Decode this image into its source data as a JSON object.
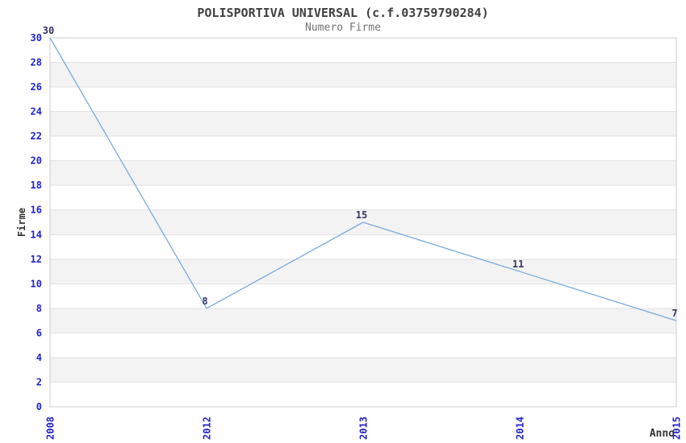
{
  "chart_data": {
    "type": "line",
    "title": "POLISPORTIVA UNIVERSAL (c.f.03759790284)",
    "subtitle": "Numero Firme",
    "xlabel": "Anno",
    "ylabel": "Firme",
    "categories": [
      "2008",
      "2012",
      "2013",
      "2014",
      "2015"
    ],
    "values": [
      30,
      8,
      15,
      11,
      7
    ],
    "series_name": "Numero Firme",
    "ylim": [
      0,
      30
    ],
    "ytick_step": 2,
    "yticks": [
      0,
      2,
      4,
      6,
      8,
      10,
      12,
      14,
      16,
      18,
      20,
      22,
      24,
      26,
      28,
      30
    ],
    "grid": "horizontal alternating bands, no vertical gridlines",
    "legend": "none",
    "colors": {
      "line": "#7aaadd",
      "tick_label": "#2222cc",
      "data_label": "#333366",
      "band_fill": "#f3f3f3",
      "gridline": "#e2e2e2",
      "border": "#cccccc",
      "title": "#404040",
      "subtitle": "#737373",
      "axis_label": "#333333",
      "background": "#ffffff"
    }
  }
}
